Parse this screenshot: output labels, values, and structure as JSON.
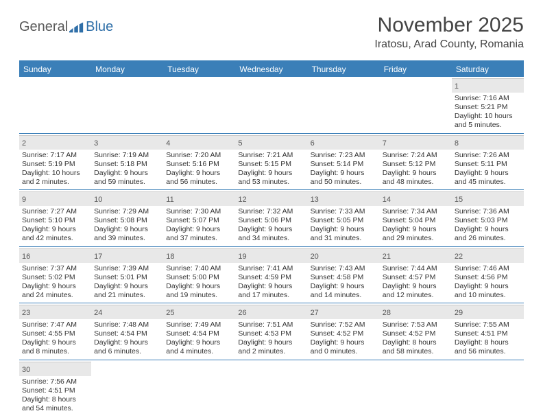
{
  "logo": {
    "part1": "General",
    "part2": "Blue"
  },
  "title": "November 2025",
  "location": "Iratosu, Arad County, Romania",
  "colors": {
    "header_bg": "#3b7fb8",
    "header_text": "#ffffff",
    "daynum_bg": "#e8e8e8",
    "border": "#3b7fb8",
    "logo_gray": "#5a5a5a",
    "logo_blue": "#2f6fa8"
  },
  "day_names": [
    "Sunday",
    "Monday",
    "Tuesday",
    "Wednesday",
    "Thursday",
    "Friday",
    "Saturday"
  ],
  "weeks": [
    [
      {
        "n": "",
        "sr": "",
        "ss": "",
        "dl1": "",
        "dl2": ""
      },
      {
        "n": "",
        "sr": "",
        "ss": "",
        "dl1": "",
        "dl2": ""
      },
      {
        "n": "",
        "sr": "",
        "ss": "",
        "dl1": "",
        "dl2": ""
      },
      {
        "n": "",
        "sr": "",
        "ss": "",
        "dl1": "",
        "dl2": ""
      },
      {
        "n": "",
        "sr": "",
        "ss": "",
        "dl1": "",
        "dl2": ""
      },
      {
        "n": "",
        "sr": "",
        "ss": "",
        "dl1": "",
        "dl2": ""
      },
      {
        "n": "1",
        "sr": "Sunrise: 7:16 AM",
        "ss": "Sunset: 5:21 PM",
        "dl1": "Daylight: 10 hours",
        "dl2": "and 5 minutes."
      }
    ],
    [
      {
        "n": "2",
        "sr": "Sunrise: 7:17 AM",
        "ss": "Sunset: 5:19 PM",
        "dl1": "Daylight: 10 hours",
        "dl2": "and 2 minutes."
      },
      {
        "n": "3",
        "sr": "Sunrise: 7:19 AM",
        "ss": "Sunset: 5:18 PM",
        "dl1": "Daylight: 9 hours",
        "dl2": "and 59 minutes."
      },
      {
        "n": "4",
        "sr": "Sunrise: 7:20 AM",
        "ss": "Sunset: 5:16 PM",
        "dl1": "Daylight: 9 hours",
        "dl2": "and 56 minutes."
      },
      {
        "n": "5",
        "sr": "Sunrise: 7:21 AM",
        "ss": "Sunset: 5:15 PM",
        "dl1": "Daylight: 9 hours",
        "dl2": "and 53 minutes."
      },
      {
        "n": "6",
        "sr": "Sunrise: 7:23 AM",
        "ss": "Sunset: 5:14 PM",
        "dl1": "Daylight: 9 hours",
        "dl2": "and 50 minutes."
      },
      {
        "n": "7",
        "sr": "Sunrise: 7:24 AM",
        "ss": "Sunset: 5:12 PM",
        "dl1": "Daylight: 9 hours",
        "dl2": "and 48 minutes."
      },
      {
        "n": "8",
        "sr": "Sunrise: 7:26 AM",
        "ss": "Sunset: 5:11 PM",
        "dl1": "Daylight: 9 hours",
        "dl2": "and 45 minutes."
      }
    ],
    [
      {
        "n": "9",
        "sr": "Sunrise: 7:27 AM",
        "ss": "Sunset: 5:10 PM",
        "dl1": "Daylight: 9 hours",
        "dl2": "and 42 minutes."
      },
      {
        "n": "10",
        "sr": "Sunrise: 7:29 AM",
        "ss": "Sunset: 5:08 PM",
        "dl1": "Daylight: 9 hours",
        "dl2": "and 39 minutes."
      },
      {
        "n": "11",
        "sr": "Sunrise: 7:30 AM",
        "ss": "Sunset: 5:07 PM",
        "dl1": "Daylight: 9 hours",
        "dl2": "and 37 minutes."
      },
      {
        "n": "12",
        "sr": "Sunrise: 7:32 AM",
        "ss": "Sunset: 5:06 PM",
        "dl1": "Daylight: 9 hours",
        "dl2": "and 34 minutes."
      },
      {
        "n": "13",
        "sr": "Sunrise: 7:33 AM",
        "ss": "Sunset: 5:05 PM",
        "dl1": "Daylight: 9 hours",
        "dl2": "and 31 minutes."
      },
      {
        "n": "14",
        "sr": "Sunrise: 7:34 AM",
        "ss": "Sunset: 5:04 PM",
        "dl1": "Daylight: 9 hours",
        "dl2": "and 29 minutes."
      },
      {
        "n": "15",
        "sr": "Sunrise: 7:36 AM",
        "ss": "Sunset: 5:03 PM",
        "dl1": "Daylight: 9 hours",
        "dl2": "and 26 minutes."
      }
    ],
    [
      {
        "n": "16",
        "sr": "Sunrise: 7:37 AM",
        "ss": "Sunset: 5:02 PM",
        "dl1": "Daylight: 9 hours",
        "dl2": "and 24 minutes."
      },
      {
        "n": "17",
        "sr": "Sunrise: 7:39 AM",
        "ss": "Sunset: 5:01 PM",
        "dl1": "Daylight: 9 hours",
        "dl2": "and 21 minutes."
      },
      {
        "n": "18",
        "sr": "Sunrise: 7:40 AM",
        "ss": "Sunset: 5:00 PM",
        "dl1": "Daylight: 9 hours",
        "dl2": "and 19 minutes."
      },
      {
        "n": "19",
        "sr": "Sunrise: 7:41 AM",
        "ss": "Sunset: 4:59 PM",
        "dl1": "Daylight: 9 hours",
        "dl2": "and 17 minutes."
      },
      {
        "n": "20",
        "sr": "Sunrise: 7:43 AM",
        "ss": "Sunset: 4:58 PM",
        "dl1": "Daylight: 9 hours",
        "dl2": "and 14 minutes."
      },
      {
        "n": "21",
        "sr": "Sunrise: 7:44 AM",
        "ss": "Sunset: 4:57 PM",
        "dl1": "Daylight: 9 hours",
        "dl2": "and 12 minutes."
      },
      {
        "n": "22",
        "sr": "Sunrise: 7:46 AM",
        "ss": "Sunset: 4:56 PM",
        "dl1": "Daylight: 9 hours",
        "dl2": "and 10 minutes."
      }
    ],
    [
      {
        "n": "23",
        "sr": "Sunrise: 7:47 AM",
        "ss": "Sunset: 4:55 PM",
        "dl1": "Daylight: 9 hours",
        "dl2": "and 8 minutes."
      },
      {
        "n": "24",
        "sr": "Sunrise: 7:48 AM",
        "ss": "Sunset: 4:54 PM",
        "dl1": "Daylight: 9 hours",
        "dl2": "and 6 minutes."
      },
      {
        "n": "25",
        "sr": "Sunrise: 7:49 AM",
        "ss": "Sunset: 4:54 PM",
        "dl1": "Daylight: 9 hours",
        "dl2": "and 4 minutes."
      },
      {
        "n": "26",
        "sr": "Sunrise: 7:51 AM",
        "ss": "Sunset: 4:53 PM",
        "dl1": "Daylight: 9 hours",
        "dl2": "and 2 minutes."
      },
      {
        "n": "27",
        "sr": "Sunrise: 7:52 AM",
        "ss": "Sunset: 4:52 PM",
        "dl1": "Daylight: 9 hours",
        "dl2": "and 0 minutes."
      },
      {
        "n": "28",
        "sr": "Sunrise: 7:53 AM",
        "ss": "Sunset: 4:52 PM",
        "dl1": "Daylight: 8 hours",
        "dl2": "and 58 minutes."
      },
      {
        "n": "29",
        "sr": "Sunrise: 7:55 AM",
        "ss": "Sunset: 4:51 PM",
        "dl1": "Daylight: 8 hours",
        "dl2": "and 56 minutes."
      }
    ],
    [
      {
        "n": "30",
        "sr": "Sunrise: 7:56 AM",
        "ss": "Sunset: 4:51 PM",
        "dl1": "Daylight: 8 hours",
        "dl2": "and 54 minutes."
      },
      {
        "n": "",
        "sr": "",
        "ss": "",
        "dl1": "",
        "dl2": ""
      },
      {
        "n": "",
        "sr": "",
        "ss": "",
        "dl1": "",
        "dl2": ""
      },
      {
        "n": "",
        "sr": "",
        "ss": "",
        "dl1": "",
        "dl2": ""
      },
      {
        "n": "",
        "sr": "",
        "ss": "",
        "dl1": "",
        "dl2": ""
      },
      {
        "n": "",
        "sr": "",
        "ss": "",
        "dl1": "",
        "dl2": ""
      },
      {
        "n": "",
        "sr": "",
        "ss": "",
        "dl1": "",
        "dl2": ""
      }
    ]
  ]
}
